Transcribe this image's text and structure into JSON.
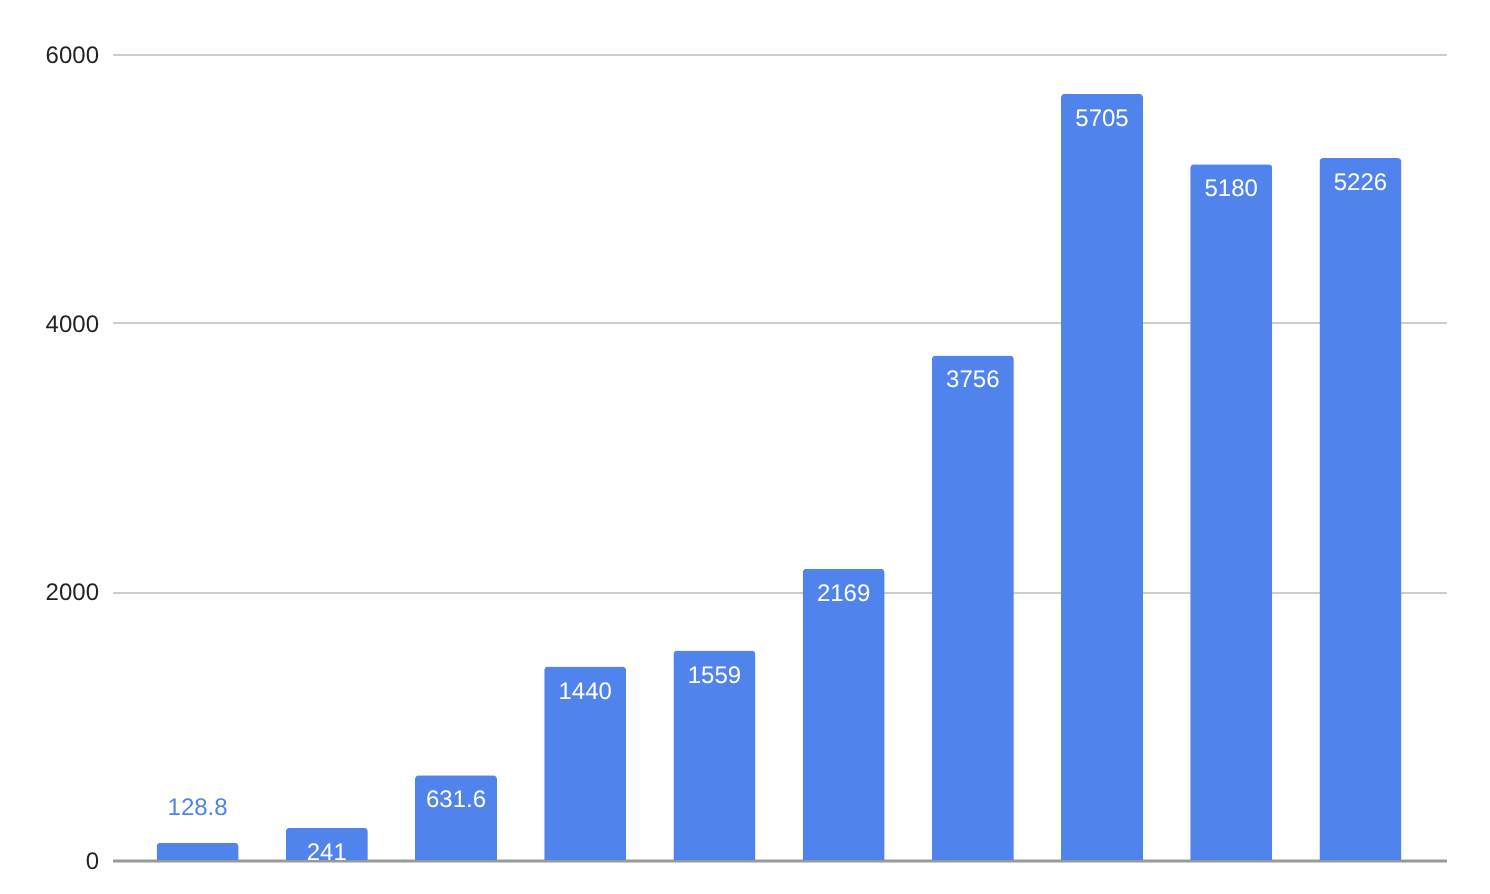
{
  "chart_data": {
    "type": "bar",
    "categories": [
      null,
      null,
      null,
      null,
      null,
      null,
      null,
      null,
      null,
      null
    ],
    "values": [
      128.8,
      241,
      631.6,
      1440,
      1559,
      2169,
      3756,
      5705,
      5180,
      5226
    ],
    "color": "#5083ec",
    "ylim": [
      0,
      6000
    ],
    "yticks": [
      0,
      2000,
      4000,
      6000
    ],
    "grid": "y",
    "data_labels": true
  }
}
